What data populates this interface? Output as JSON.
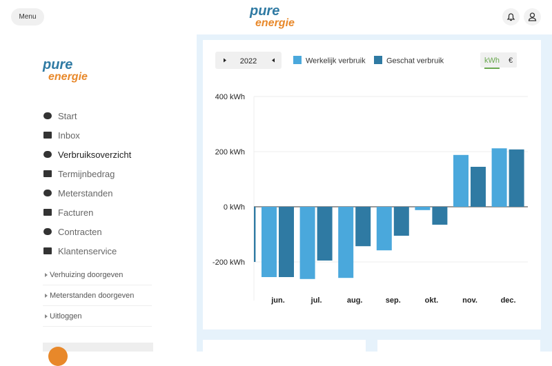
{
  "header": {
    "menu": "Menu",
    "logo": {
      "line1": "pure",
      "line2": "energie"
    }
  },
  "sidebar": {
    "logo": {
      "line1": "pure",
      "line2": "energie"
    },
    "nav": [
      "Start",
      "Inbox",
      "Verbruiksoverzicht",
      "Termijnbedrag",
      "Meterstanden",
      "Facturen",
      "Contracten",
      "Klantenservice"
    ],
    "active": 2,
    "links": [
      "Verhuizing doorgeven",
      "Meterstanden doorgeven",
      "Uitloggen"
    ]
  },
  "controls": {
    "year": "2022",
    "units": [
      "kWh",
      "€"
    ]
  },
  "chart_data": {
    "type": "bar",
    "categories": [
      null,
      "jun.",
      "jul.",
      "aug.",
      "sep.",
      "okt.",
      "nov.",
      "dec."
    ],
    "series": [
      {
        "name": "Werkelijk verbruik",
        "color": "#4aa8dc",
        "values": [
          null,
          -255,
          -262,
          -258,
          -158,
          -12,
          188,
          212
        ]
      },
      {
        "name": "Geschat verbruik",
        "color": "#2f7aa3",
        "values": [
          -200,
          -255,
          -195,
          -143,
          -105,
          -65,
          145,
          208
        ]
      }
    ],
    "ylim": [
      -340,
      400
    ],
    "yticks": [
      {
        "value": 400,
        "label": "400 kWh"
      },
      {
        "value": 200,
        "label": "200 kWh"
      },
      {
        "value": 0,
        "label": "0 kWh"
      },
      {
        "value": -200,
        "label": "-200 kWh"
      }
    ],
    "grid": true
  }
}
